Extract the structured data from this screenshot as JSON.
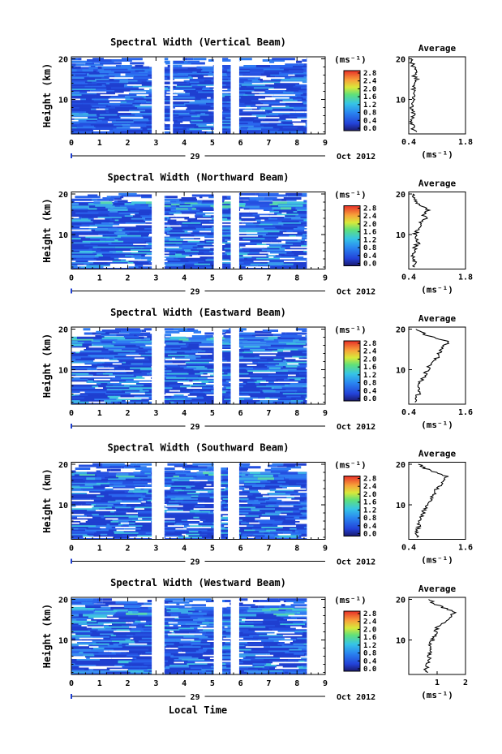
{
  "figure": {
    "date_label": "Oct 2012",
    "day_label": "29",
    "xlabel": "Local Time",
    "colorbar_unit": "(ms⁻¹)",
    "colorbar_ticks": [
      "0.0",
      "0.4",
      "0.8",
      "1.2",
      "1.6",
      "2.0",
      "2.4",
      "2.8"
    ],
    "avg_title": "Average",
    "avg_unit": "(ms⁻¹)"
  },
  "chart_data": [
    {
      "type": "heatmap",
      "title": "Spectral Width (Vertical Beam)",
      "ylabel": "Height (km)",
      "xlabel": "",
      "x_ticks": [
        0,
        1,
        2,
        3,
        4,
        5,
        6,
        7,
        8,
        9
      ],
      "xlim": [
        0,
        9
      ],
      "y_ticks": [
        10,
        20
      ],
      "ylim": [
        1.5,
        20.5
      ],
      "colorbar": {
        "label": "(ms⁻¹)",
        "range": [
          0.0,
          2.8
        ],
        "ticks": [
          0.0,
          0.4,
          0.8,
          1.2,
          1.6,
          2.0,
          2.4,
          2.8
        ]
      },
      "data_gaps_hours": [
        [
          2.85,
          3.3
        ],
        [
          3.5,
          3.6
        ],
        [
          5.05,
          5.35
        ],
        [
          5.65,
          5.95
        ]
      ],
      "data_end_hours": 8.35,
      "average_profile": {
        "xlim": [
          0.4,
          1.8
        ],
        "x_ticks": [
          "0.4",
          "1.8"
        ],
        "heights_km": [
          2,
          3,
          4,
          5,
          6,
          7,
          8,
          9,
          10,
          11,
          12,
          13,
          14,
          15,
          16,
          17,
          18,
          19,
          20
        ],
        "values": [
          0.55,
          0.5,
          0.48,
          0.47,
          0.5,
          0.52,
          0.48,
          0.5,
          0.53,
          0.5,
          0.56,
          0.5,
          0.55,
          0.6,
          0.52,
          0.58,
          0.53,
          0.48,
          0.45
        ]
      }
    },
    {
      "type": "heatmap",
      "title": "Spectral Width (Northward Beam)",
      "ylabel": "Height (km)",
      "x_ticks": [
        0,
        1,
        2,
        3,
        4,
        5,
        6,
        7,
        8,
        9
      ],
      "xlim": [
        0,
        9
      ],
      "y_ticks": [
        10,
        20
      ],
      "ylim": [
        1.5,
        20.5
      ],
      "colorbar": {
        "label": "(ms⁻¹)",
        "range": [
          0.0,
          2.8
        ],
        "ticks": [
          0.0,
          0.4,
          0.8,
          1.2,
          1.6,
          2.0,
          2.4,
          2.8
        ]
      },
      "data_gaps_hours": [
        [
          2.85,
          3.3
        ],
        [
          5.05,
          5.35
        ],
        [
          5.65,
          5.95
        ]
      ],
      "data_end_hours": 8.35,
      "average_profile": {
        "xlim": [
          0.4,
          1.8
        ],
        "x_ticks": [
          "0.4",
          "1.8"
        ],
        "heights_km": [
          2,
          3,
          4,
          5,
          6,
          7,
          8,
          9,
          10,
          11,
          12,
          13,
          14,
          15,
          16,
          17,
          18,
          19,
          20
        ],
        "values": [
          0.5,
          0.55,
          0.5,
          0.52,
          0.58,
          0.55,
          0.65,
          0.6,
          0.55,
          0.62,
          0.7,
          0.65,
          0.85,
          0.75,
          0.9,
          0.7,
          0.6,
          0.55,
          0.5
        ]
      }
    },
    {
      "type": "heatmap",
      "title": "Spectral Width (Eastward Beam)",
      "ylabel": "Height (km)",
      "x_ticks": [
        0,
        1,
        2,
        3,
        4,
        5,
        6,
        7,
        8,
        9
      ],
      "xlim": [
        0,
        9
      ],
      "y_ticks": [
        10,
        20
      ],
      "ylim": [
        1.5,
        20.5
      ],
      "colorbar": {
        "label": "(ms⁻¹)",
        "range": [
          0.0,
          2.8
        ],
        "ticks": [
          0.0,
          0.4,
          0.8,
          1.2,
          1.6,
          2.0,
          2.4,
          2.8
        ]
      },
      "data_gaps_hours": [
        [
          2.85,
          3.3
        ],
        [
          5.05,
          5.35
        ],
        [
          5.65,
          5.95
        ]
      ],
      "data_end_hours": 8.35,
      "average_profile": {
        "xlim": [
          0.4,
          1.6
        ],
        "x_ticks": [
          "0.4",
          "1.6"
        ],
        "heights_km": [
          2,
          3,
          4,
          5,
          6,
          7,
          8,
          9,
          10,
          11,
          12,
          13,
          14,
          15,
          16,
          17,
          18,
          19,
          20
        ],
        "values": [
          0.55,
          0.58,
          0.6,
          0.62,
          0.6,
          0.65,
          0.7,
          0.75,
          0.8,
          0.85,
          0.95,
          1.0,
          1.05,
          1.1,
          1.15,
          1.25,
          0.9,
          0.7,
          0.55
        ]
      }
    },
    {
      "type": "heatmap",
      "title": "Spectral Width (Southward Beam)",
      "ylabel": "Height (km)",
      "x_ticks": [
        0,
        1,
        2,
        3,
        4,
        5,
        6,
        7,
        8,
        9
      ],
      "xlim": [
        0,
        9
      ],
      "y_ticks": [
        10,
        20
      ],
      "ylim": [
        1.5,
        20.5
      ],
      "colorbar": {
        "label": "(ms⁻¹)",
        "range": [
          0.0,
          2.8
        ],
        "ticks": [
          0.0,
          0.4,
          0.8,
          1.2,
          1.6,
          2.0,
          2.4,
          2.8
        ]
      },
      "data_gaps_hours": [
        [
          2.85,
          3.3
        ],
        [
          5.05,
          5.3
        ],
        [
          5.55,
          5.95
        ]
      ],
      "data_end_hours": 8.35,
      "average_profile": {
        "xlim": [
          0.4,
          1.6
        ],
        "x_ticks": [
          "0.4",
          "1.6"
        ],
        "heights_km": [
          2,
          3,
          4,
          5,
          6,
          7,
          8,
          9,
          10,
          11,
          12,
          13,
          14,
          15,
          16,
          17,
          18,
          19,
          20
        ],
        "values": [
          0.55,
          0.58,
          0.6,
          0.62,
          0.65,
          0.68,
          0.7,
          0.72,
          0.8,
          0.85,
          0.9,
          0.95,
          1.0,
          1.1,
          1.15,
          1.2,
          0.95,
          0.75,
          0.6
        ]
      }
    },
    {
      "type": "heatmap",
      "title": "Spectral Width (Westward Beam)",
      "ylabel": "Height (km)",
      "x_ticks": [
        0,
        1,
        2,
        3,
        4,
        5,
        6,
        7,
        8,
        9
      ],
      "xlim": [
        0,
        9
      ],
      "y_ticks": [
        10,
        20
      ],
      "ylim": [
        1.5,
        20.5
      ],
      "colorbar": {
        "label": "(ms⁻¹)",
        "range": [
          0.0,
          2.8
        ],
        "ticks": [
          0.0,
          0.4,
          0.8,
          1.2,
          1.6,
          2.0,
          2.4,
          2.8
        ]
      },
      "data_gaps_hours": [
        [
          2.85,
          3.3
        ],
        [
          5.05,
          5.35
        ],
        [
          5.65,
          5.95
        ]
      ],
      "data_end_hours": 8.35,
      "average_profile": {
        "xlim": [
          0,
          2
        ],
        "x_ticks": [
          "1",
          "2"
        ],
        "heights_km": [
          2,
          3,
          4,
          5,
          6,
          7,
          8,
          9,
          10,
          11,
          12,
          13,
          14,
          15,
          16,
          17,
          18,
          19,
          20
        ],
        "values": [
          0.6,
          0.62,
          0.65,
          0.7,
          0.72,
          0.75,
          0.8,
          0.78,
          0.85,
          0.9,
          0.95,
          1.0,
          1.2,
          1.35,
          1.5,
          1.6,
          1.2,
          0.9,
          0.7
        ]
      }
    }
  ]
}
